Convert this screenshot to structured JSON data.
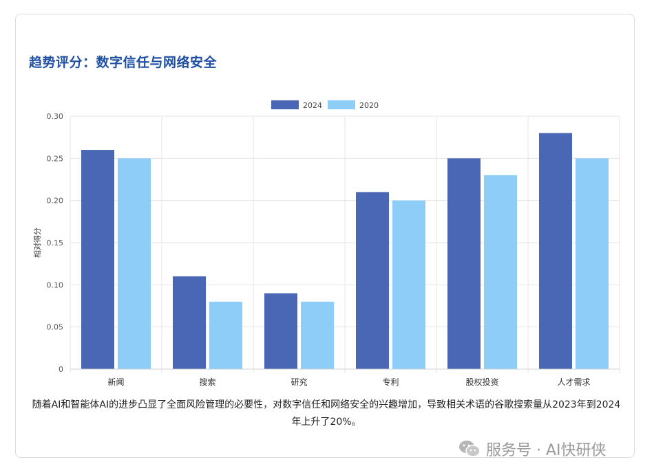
{
  "title": "趋势评分：数字信任与网络安全",
  "caption": "随着AI和智能体AI的进步凸显了全面风险管理的必要性，对数字信任和网络安全的兴趣增加，导致相关术语的谷歌搜索量从2023年到2024年上升了20%。",
  "watermark": {
    "text": "服务号 · AI快研侠",
    "icon": "wechat-icon"
  },
  "colors": {
    "series_2024": "#4a67b5",
    "series_2020": "#8ecdf8",
    "title": "#1f4fa3"
  },
  "chart_data": {
    "type": "bar",
    "categories": [
      "新闻",
      "搜索",
      "研究",
      "专利",
      "股权投资",
      "人才需求"
    ],
    "series": [
      {
        "name": "2024",
        "values": [
          0.26,
          0.11,
          0.09,
          0.21,
          0.25,
          0.28
        ],
        "color": "#4a67b5"
      },
      {
        "name": "2020",
        "values": [
          0.25,
          0.08,
          0.08,
          0.2,
          0.23,
          0.25
        ],
        "color": "#8ecdf8"
      }
    ],
    "ylabel": "相对得分",
    "xlabel": "",
    "ylim": [
      0,
      0.3
    ],
    "yticks": [
      "0",
      "0.05",
      "0.10",
      "0.15",
      "0.20",
      "0.25",
      "0.30"
    ],
    "ytick_values": [
      0,
      0.05,
      0.1,
      0.15,
      0.2,
      0.25,
      0.3
    ],
    "grid": true,
    "legend": "top-center"
  }
}
